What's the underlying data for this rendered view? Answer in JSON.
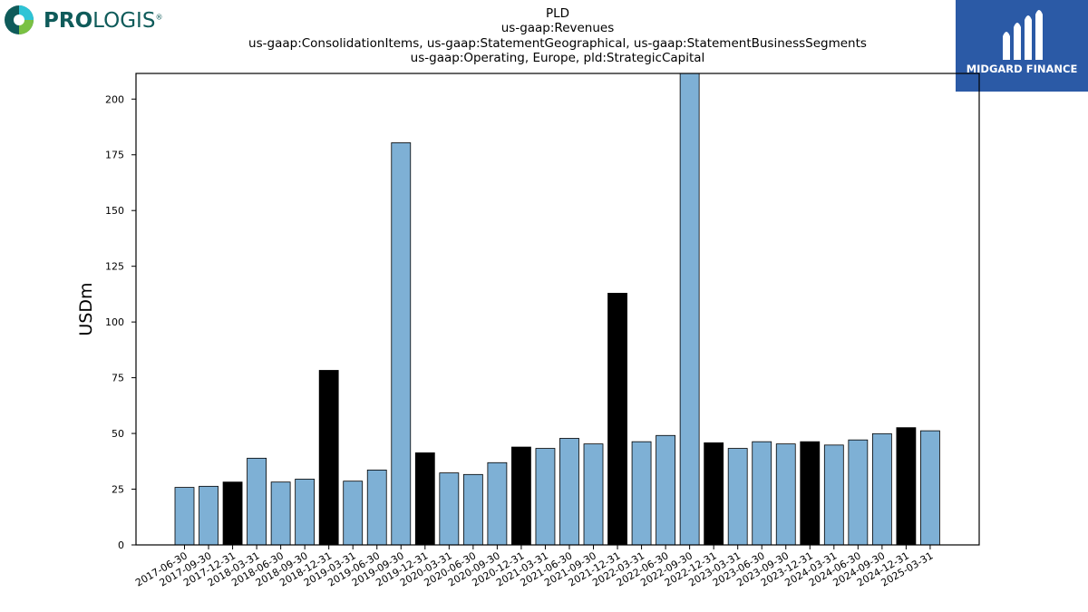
{
  "header": {
    "title_lines": [
      "PLD",
      "us-gaap:Revenues",
      "us-gaap:ConsolidationItems, us-gaap:StatementGeographical, us-gaap:StatementBusinessSegments",
      "us-gaap:Operating, Europe, pld:StrategicCapital"
    ]
  },
  "logos": {
    "left": {
      "text_bold": "PRO",
      "text_regular": "LOGIS",
      "mark": "®",
      "color": "#0f5b5a"
    },
    "right": {
      "text": "MIDGARD FINANCE",
      "background": "#2b5aa6"
    }
  },
  "colors": {
    "quarter_bar": "#7eb0d5",
    "year_end_bar": "#000000"
  },
  "chart_data": {
    "type": "bar",
    "categories": [
      "2017-06-30",
      "2017-09-30",
      "2017-12-31",
      "2018-03-31",
      "2018-06-30",
      "2018-09-30",
      "2018-12-31",
      "2019-03-31",
      "2019-06-30",
      "2019-09-30",
      "2019-12-31",
      "2020-03-31",
      "2020-06-30",
      "2020-09-30",
      "2020-12-31",
      "2021-03-31",
      "2021-06-30",
      "2021-09-30",
      "2021-12-31",
      "2022-03-31",
      "2022-06-30",
      "2022-09-30",
      "2022-12-31",
      "2023-03-31",
      "2023-06-30",
      "2023-09-30",
      "2023-12-31",
      "2024-03-31",
      "2024-06-30",
      "2024-09-30",
      "2024-12-31",
      "2025-03-31"
    ],
    "values": [
      25.8,
      26.3,
      28.2,
      38.9,
      28.2,
      29.5,
      78.3,
      28.6,
      33.6,
      180.4,
      41.3,
      32.3,
      31.6,
      36.9,
      43.9,
      43.3,
      47.8,
      45.3,
      112.9,
      46.3,
      49.1,
      215.0,
      45.8,
      43.3,
      46.3,
      45.3,
      46.3,
      44.8,
      47.1,
      49.9,
      52.6,
      51.2
    ],
    "year_end": [
      false,
      false,
      true,
      false,
      false,
      false,
      true,
      false,
      false,
      false,
      true,
      false,
      false,
      false,
      true,
      false,
      false,
      false,
      true,
      false,
      false,
      false,
      true,
      false,
      false,
      false,
      true,
      false,
      false,
      false,
      true,
      false
    ],
    "ylabel": "USDm",
    "xlabel": "",
    "ylim": [
      0,
      211.5
    ],
    "yticks": [
      0,
      25,
      50,
      75,
      100,
      125,
      150,
      175,
      200
    ],
    "grid": false
  }
}
